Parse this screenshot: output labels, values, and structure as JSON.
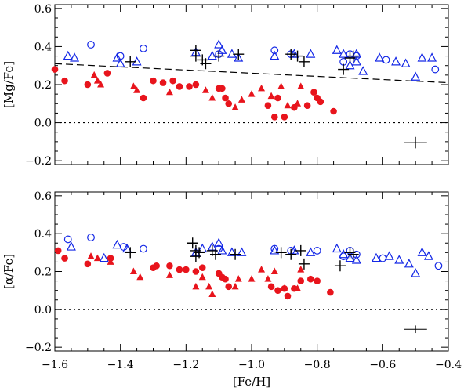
{
  "chart_data": [
    {
      "type": "scatter",
      "ylabel": "[Mg/Fe]",
      "xlim": [
        -1.6,
        -0.4
      ],
      "ylim": [
        -0.22,
        0.62
      ],
      "xticks": [
        "−1.6",
        "−1.4",
        "−1.2",
        "−1.0",
        "−0.8",
        "−0.6",
        "−0.4"
      ],
      "yticks": [
        "−0.2",
        "0.0",
        "0.2",
        "0.4",
        "0.6"
      ],
      "show_xtick_labels": false,
      "reference_lines": [
        {
          "style": "dashed",
          "x": [
            -1.6,
            -0.4
          ],
          "y": [
            0.31,
            0.21
          ]
        },
        {
          "style": "dotted",
          "x": [
            -1.6,
            -0.4
          ],
          "y": [
            0.0,
            0.0
          ]
        }
      ],
      "error_bar": {
        "x": -0.5,
        "y": -0.105,
        "xerr": 0.035,
        "yerr": 0.03
      },
      "colors": {
        "red": "#e8141c",
        "blue": "#1428e6",
        "black": "#000000"
      },
      "series": [
        {
          "marker": "filled-circle",
          "color": "red",
          "points": [
            [
              -1.6,
              0.28
            ],
            [
              -1.57,
              0.22
            ],
            [
              -1.5,
              0.2
            ],
            [
              -1.44,
              0.26
            ],
            [
              -1.33,
              0.13
            ],
            [
              -1.3,
              0.22
            ],
            [
              -1.27,
              0.21
            ],
            [
              -1.24,
              0.22
            ],
            [
              -1.22,
              0.19
            ],
            [
              -1.19,
              0.19
            ],
            [
              -1.17,
              0.2
            ],
            [
              -1.1,
              0.18
            ],
            [
              -1.09,
              0.18
            ],
            [
              -1.08,
              0.13
            ],
            [
              -1.07,
              0.1
            ],
            [
              -0.93,
              0.03
            ],
            [
              -0.9,
              0.03
            ],
            [
              -0.87,
              0.08
            ],
            [
              -0.83,
              0.09
            ],
            [
              -0.81,
              0.16
            ],
            [
              -0.8,
              0.13
            ],
            [
              -0.79,
              0.11
            ],
            [
              -0.75,
              0.06
            ],
            [
              -0.95,
              0.09
            ],
            [
              -0.92,
              0.13
            ]
          ]
        },
        {
          "marker": "filled-triangle",
          "color": "red",
          "points": [
            [
              -1.48,
              0.25
            ],
            [
              -1.47,
              0.22
            ],
            [
              -1.46,
              0.2
            ],
            [
              -1.36,
              0.19
            ],
            [
              -1.35,
              0.17
            ],
            [
              -1.25,
              0.16
            ],
            [
              -1.14,
              0.17
            ],
            [
              -1.12,
              0.13
            ],
            [
              -1.05,
              0.08
            ],
            [
              -1.03,
              0.12
            ],
            [
              -1.0,
              0.15
            ],
            [
              -0.97,
              0.18
            ],
            [
              -0.94,
              0.14
            ],
            [
              -0.91,
              0.19
            ],
            [
              -0.89,
              0.09
            ],
            [
              -0.86,
              0.1
            ],
            [
              -0.85,
              0.19
            ]
          ]
        },
        {
          "marker": "open-circle",
          "color": "blue",
          "points": [
            [
              -1.49,
              0.41
            ],
            [
              -1.4,
              0.35
            ],
            [
              -1.33,
              0.39
            ],
            [
              -1.1,
              0.36
            ],
            [
              -0.93,
              0.38
            ],
            [
              -0.88,
              0.36
            ],
            [
              -0.72,
              0.32
            ],
            [
              -0.7,
              0.36
            ],
            [
              -0.68,
              0.35
            ],
            [
              -0.59,
              0.33
            ],
            [
              -0.44,
              0.28
            ]
          ]
        },
        {
          "marker": "open-triangle",
          "color": "blue",
          "points": [
            [
              -1.56,
              0.35
            ],
            [
              -1.54,
              0.34
            ],
            [
              -1.41,
              0.34
            ],
            [
              -1.4,
              0.31
            ],
            [
              -1.35,
              0.32
            ],
            [
              -1.17,
              0.37
            ],
            [
              -1.12,
              0.35
            ],
            [
              -1.1,
              0.41
            ],
            [
              -1.09,
              0.38
            ],
            [
              -1.06,
              0.36
            ],
            [
              -1.04,
              0.34
            ],
            [
              -0.93,
              0.35
            ],
            [
              -0.87,
              0.36
            ],
            [
              -0.82,
              0.36
            ],
            [
              -0.74,
              0.38
            ],
            [
              -0.72,
              0.36
            ],
            [
              -0.7,
              0.3
            ],
            [
              -0.68,
              0.36
            ],
            [
              -0.66,
              0.27
            ],
            [
              -0.61,
              0.34
            ],
            [
              -0.56,
              0.32
            ],
            [
              -0.53,
              0.31
            ],
            [
              -0.5,
              0.24
            ],
            [
              -0.48,
              0.34
            ],
            [
              -0.45,
              0.34
            ],
            [
              -0.68,
              0.32
            ]
          ]
        },
        {
          "marker": "plus",
          "color": "black",
          "points": [
            [
              -1.37,
              0.32
            ],
            [
              -1.17,
              0.38
            ],
            [
              -1.17,
              0.35
            ],
            [
              -1.15,
              0.33
            ],
            [
              -1.14,
              0.31
            ],
            [
              -1.1,
              0.35
            ],
            [
              -1.04,
              0.36
            ],
            [
              -0.88,
              0.36
            ],
            [
              -0.86,
              0.35
            ],
            [
              -0.84,
              0.32
            ],
            [
              -0.72,
              0.28
            ],
            [
              -0.7,
              0.34
            ],
            [
              -0.69,
              0.35
            ]
          ]
        }
      ]
    },
    {
      "type": "scatter",
      "xlabel": "[Fe/H]",
      "ylabel": "[α/Fe]",
      "xlim": [
        -1.6,
        -0.4
      ],
      "ylim": [
        -0.22,
        0.62
      ],
      "xticks": [
        "−1.6",
        "−1.4",
        "−1.2",
        "−1.0",
        "−0.8",
        "−0.6",
        "−0.4"
      ],
      "yticks": [
        "−0.2",
        "0.0",
        "0.2",
        "0.4",
        "0.6"
      ],
      "show_xtick_labels": true,
      "reference_lines": [
        {
          "style": "dotted",
          "x": [
            -1.6,
            -0.4
          ],
          "y": [
            0.0,
            0.0
          ]
        }
      ],
      "error_bar": {
        "x": -0.5,
        "y": -0.105,
        "xerr": 0.035,
        "yerr": 0.02
      },
      "colors": {
        "red": "#e8141c",
        "blue": "#1428e6",
        "black": "#000000"
      },
      "series": [
        {
          "marker": "filled-circle",
          "color": "red",
          "points": [
            [
              -1.59,
              0.31
            ],
            [
              -1.57,
              0.27
            ],
            [
              -1.5,
              0.24
            ],
            [
              -1.43,
              0.27
            ],
            [
              -1.3,
              0.22
            ],
            [
              -1.29,
              0.23
            ],
            [
              -1.25,
              0.23
            ],
            [
              -1.22,
              0.21
            ],
            [
              -1.2,
              0.21
            ],
            [
              -1.17,
              0.2
            ],
            [
              -1.15,
              0.22
            ],
            [
              -1.1,
              0.19
            ],
            [
              -1.09,
              0.17
            ],
            [
              -1.08,
              0.16
            ],
            [
              -1.07,
              0.12
            ],
            [
              -0.92,
              0.1
            ],
            [
              -0.9,
              0.11
            ],
            [
              -0.89,
              0.07
            ],
            [
              -0.87,
              0.11
            ],
            [
              -0.85,
              0.15
            ],
            [
              -0.82,
              0.16
            ],
            [
              -0.8,
              0.15
            ],
            [
              -0.76,
              0.09
            ],
            [
              -0.94,
              0.12
            ]
          ]
        },
        {
          "marker": "filled-triangle",
          "color": "red",
          "points": [
            [
              -1.49,
              0.28
            ],
            [
              -1.47,
              0.27
            ],
            [
              -1.43,
              0.25
            ],
            [
              -1.36,
              0.2
            ],
            [
              -1.34,
              0.17
            ],
            [
              -1.25,
              0.18
            ],
            [
              -1.15,
              0.17
            ],
            [
              -1.13,
              0.12
            ],
            [
              -1.05,
              0.12
            ],
            [
              -1.04,
              0.16
            ],
            [
              -1.0,
              0.16
            ],
            [
              -0.97,
              0.21
            ],
            [
              -0.95,
              0.16
            ],
            [
              -0.93,
              0.2
            ],
            [
              -0.9,
              0.11
            ],
            [
              -0.86,
              0.11
            ],
            [
              -0.85,
              0.21
            ],
            [
              -1.12,
              0.08
            ],
            [
              -1.17,
              0.12
            ]
          ]
        },
        {
          "marker": "open-circle",
          "color": "blue",
          "points": [
            [
              -1.56,
              0.37
            ],
            [
              -1.49,
              0.38
            ],
            [
              -1.39,
              0.33
            ],
            [
              -1.33,
              0.32
            ],
            [
              -1.1,
              0.32
            ],
            [
              -0.93,
              0.32
            ],
            [
              -0.88,
              0.31
            ],
            [
              -0.8,
              0.31
            ],
            [
              -0.72,
              0.28
            ],
            [
              -0.7,
              0.31
            ],
            [
              -0.68,
              0.29
            ],
            [
              -0.6,
              0.27
            ],
            [
              -0.43,
              0.23
            ]
          ]
        },
        {
          "marker": "open-triangle",
          "color": "blue",
          "points": [
            [
              -1.55,
              0.33
            ],
            [
              -1.45,
              0.27
            ],
            [
              -1.41,
              0.34
            ],
            [
              -1.38,
              0.32
            ],
            [
              -1.17,
              0.3
            ],
            [
              -1.15,
              0.32
            ],
            [
              -1.12,
              0.33
            ],
            [
              -1.1,
              0.35
            ],
            [
              -1.09,
              0.31
            ],
            [
              -1.06,
              0.3
            ],
            [
              -1.03,
              0.3
            ],
            [
              -0.93,
              0.31
            ],
            [
              -0.87,
              0.31
            ],
            [
              -0.82,
              0.3
            ],
            [
              -0.74,
              0.32
            ],
            [
              -0.72,
              0.29
            ],
            [
              -0.7,
              0.27
            ],
            [
              -0.68,
              0.26
            ],
            [
              -0.62,
              0.27
            ],
            [
              -0.58,
              0.28
            ],
            [
              -0.55,
              0.26
            ],
            [
              -0.52,
              0.24
            ],
            [
              -0.5,
              0.19
            ],
            [
              -0.48,
              0.3
            ],
            [
              -0.46,
              0.28
            ]
          ]
        },
        {
          "marker": "plus",
          "color": "black",
          "points": [
            [
              -1.37,
              0.3
            ],
            [
              -1.18,
              0.35
            ],
            [
              -1.17,
              0.31
            ],
            [
              -1.17,
              0.28
            ],
            [
              -1.16,
              0.3
            ],
            [
              -1.12,
              0.31
            ],
            [
              -1.11,
              0.29
            ],
            [
              -1.05,
              0.29
            ],
            [
              -0.91,
              0.3
            ],
            [
              -0.88,
              0.29
            ],
            [
              -0.85,
              0.31
            ],
            [
              -0.84,
              0.24
            ],
            [
              -0.73,
              0.23
            ],
            [
              -0.7,
              0.3
            ],
            [
              -0.69,
              0.29
            ]
          ]
        }
      ]
    }
  ]
}
